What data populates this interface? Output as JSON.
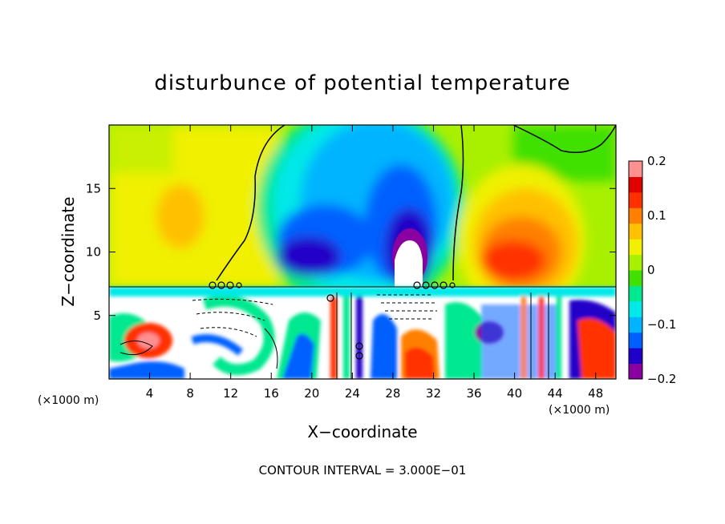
{
  "chart_data": {
    "type": "heatmap",
    "title": "disturbunce of potential temperature",
    "xlabel": "X−coordinate",
    "ylabel": "Z−coordinate",
    "x_unit": "(×1000 m)",
    "x_unit_right": "(×1000 m)",
    "xlim": [
      0,
      50
    ],
    "ylim": [
      0,
      20
    ],
    "xticks": [
      4,
      8,
      12,
      16,
      20,
      24,
      28,
      32,
      36,
      40,
      44,
      48
    ],
    "yticks": [
      5,
      10,
      15
    ],
    "colorbar": {
      "range": [
        -0.2,
        0.2
      ],
      "tick_values": [
        0.2,
        0.1,
        0,
        -0.1,
        -0.2
      ],
      "tick_labels": [
        "0.2",
        "0.1",
        "0",
        "−0.1",
        "−0.2"
      ]
    },
    "features": [
      {
        "kind": "warm anomaly",
        "x_center": 6.5,
        "z_center": 13,
        "value": 0.07
      },
      {
        "kind": "cold anomaly",
        "x_center": 23,
        "z_center": 11,
        "value": -0.13
      },
      {
        "kind": "cold anomaly core",
        "x_center": 28.5,
        "z_center": 10,
        "value": -0.19
      },
      {
        "kind": "warm anomaly",
        "x_center": 41,
        "z_center": 11,
        "value": 0.14
      }
    ],
    "grid": false,
    "legend": "colorbar right",
    "contour_note": "CONTOUR INTERVAL = 3.000E−01"
  },
  "colors": {
    "background": "#ffffff",
    "axes": "#000000",
    "scale": [
      "#8b00a0",
      "#2000c8",
      "#0060ff",
      "#00b4ff",
      "#00e8e8",
      "#00e890",
      "#40e000",
      "#a8f000",
      "#f0f000",
      "#ffc000",
      "#ff8000",
      "#ff3000",
      "#e00000",
      "#ff9090"
    ]
  }
}
